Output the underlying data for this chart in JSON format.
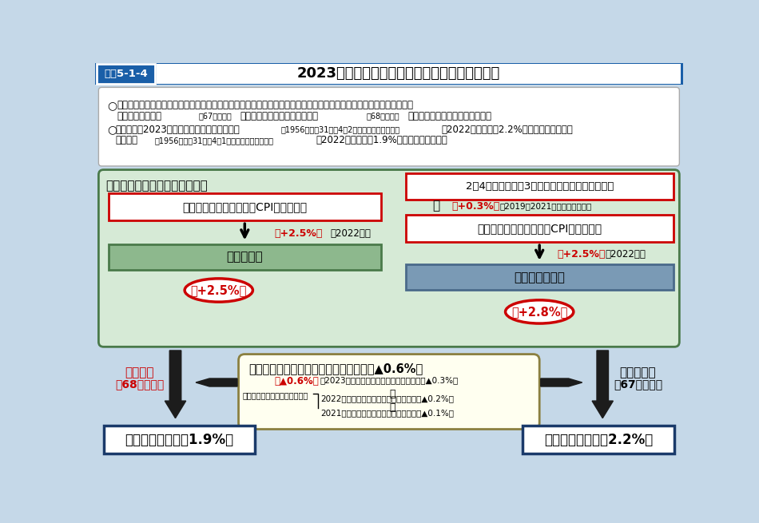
{
  "title_label": "図表5-1-4",
  "title_text": "2023年度の年金額の改定（スライド）について",
  "bg_color": "#c5d8e8",
  "sec1_title": "（１）物価変動率・賃金変動率",
  "cpi_box_text": "前年の消費者物価指数（CPI）の変動率",
  "bukka_text": "物価変動率",
  "bukka_result": "【+2.5%】",
  "real_wage_title": "2～4年度前（直近3年度平均）の実質賃金変動率",
  "cpi_box_right_text": "前年の消費者物価指数（CPI）の変動率",
  "meimoku_text": "名目賃金変動率",
  "meimoku_result": "【+2.8%】",
  "sec2_title": "（２）マクロ経済スライドによる調整【▲0.6%】",
  "kisai_result_text": "年金額改定率【＋1.9%】",
  "shinki_result_text": "年金額改定率【＋2.2%】",
  "red_text_color": "#cc0000",
  "dark_color": "#1a1a1a",
  "blue_dark": "#1a3a6a"
}
